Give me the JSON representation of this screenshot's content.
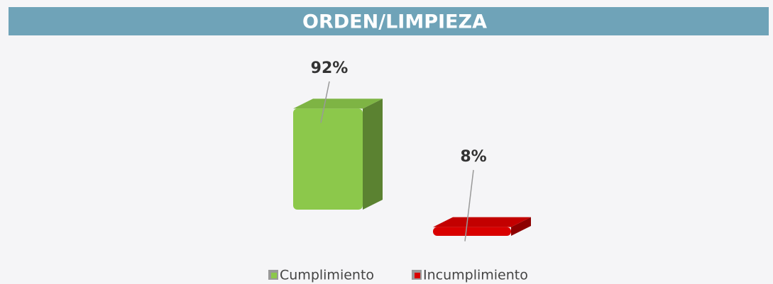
{
  "chart_data": {
    "type": "bar3d",
    "title": "ORDEN/LIMPIEZA",
    "categories": [
      "Cumplimiento",
      "Incumplimiento"
    ],
    "values": [
      92,
      8
    ],
    "value_labels": [
      "92%",
      "8%"
    ],
    "colors": [
      "#8cc84b",
      "#d90000"
    ]
  }
}
